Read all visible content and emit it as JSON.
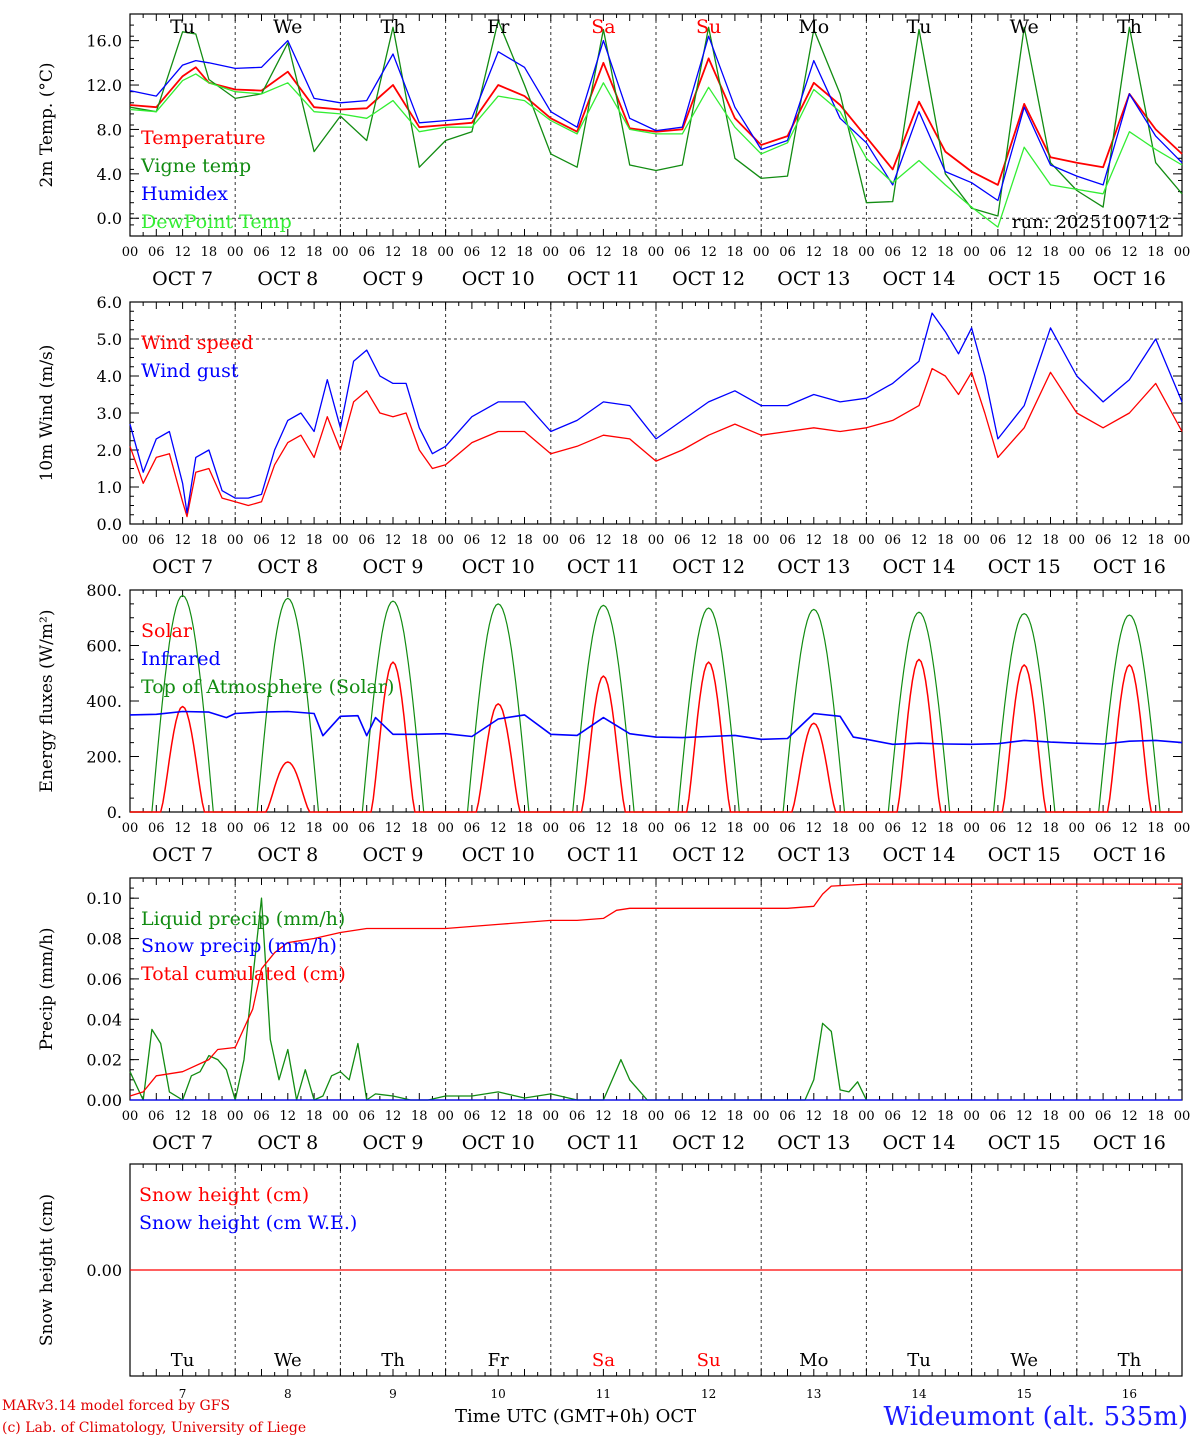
{
  "station": "Wideumont (alt. 535m)",
  "model_note": "MARv3.14 model forced by GFS",
  "copyright": "(c) Lab. of Climatology, University of Liege",
  "x_axis_title": "Time UTC (GMT+0h)",
  "month_label": "OCT",
  "run_label": "run: 2025100712",
  "days": [
    {
      "dow": "Tu",
      "date": "OCT  7",
      "num": "7",
      "weekend": false
    },
    {
      "dow": "We",
      "date": "OCT  8",
      "num": "8",
      "weekend": false
    },
    {
      "dow": "Th",
      "date": "OCT  9",
      "num": "9",
      "weekend": false
    },
    {
      "dow": "Fr",
      "date": "OCT 10",
      "num": "10",
      "weekend": false
    },
    {
      "dow": "Sa",
      "date": "OCT 11",
      "num": "11",
      "weekend": true
    },
    {
      "dow": "Su",
      "date": "OCT 12",
      "num": "12",
      "weekend": true
    },
    {
      "dow": "Mo",
      "date": "OCT 13",
      "num": "13",
      "weekend": false
    },
    {
      "dow": "Tu",
      "date": "OCT 14",
      "num": "14",
      "weekend": false
    },
    {
      "dow": "We",
      "date": "OCT 15",
      "num": "15",
      "weekend": false
    },
    {
      "dow": "Th",
      "date": "OCT 16",
      "num": "16",
      "weekend": false
    }
  ],
  "hour_labels": [
    "00",
    "06",
    "12",
    "18"
  ],
  "colors": {
    "red": "#ff0000",
    "darkgreen": "#128c12",
    "blue": "#0000ff",
    "lightgreen": "#33ee33",
    "weekend": "#ff0000",
    "station": "#1a1aff"
  },
  "chart_data": [
    {
      "type": "line",
      "id": "temp",
      "ylabel": "2m Temp. (°C)",
      "ylim": [
        -1.6,
        18.4
      ],
      "yticks": [
        0.0,
        4.0,
        8.0,
        12.0,
        16.0
      ],
      "ytick_labels": [
        "0.0",
        "4.0",
        "8.0",
        "12.0",
        "16.0"
      ],
      "x_unit": "hours since 2025-10-07 00 UTC",
      "series": [
        {
          "name": "Temperature",
          "color": "#ff0000",
          "x": [
            0,
            6,
            12,
            15,
            18,
            24,
            30,
            36,
            42,
            48,
            54,
            60,
            66,
            72,
            78,
            84,
            90,
            96,
            102,
            108,
            114,
            120,
            126,
            132,
            138,
            144,
            150,
            156,
            162,
            168,
            174,
            180,
            186,
            192,
            198,
            204,
            210,
            216,
            222,
            228,
            234,
            240
          ],
          "y": [
            10.2,
            10.0,
            12.8,
            13.6,
            12.2,
            11.6,
            11.5,
            13.2,
            10.0,
            9.8,
            9.9,
            12.0,
            8.2,
            8.4,
            8.6,
            12.0,
            11.0,
            9.0,
            7.8,
            14.0,
            8.1,
            7.8,
            8.0,
            14.4,
            9.0,
            6.6,
            7.4,
            12.2,
            10.2,
            7.3,
            4.4,
            10.5,
            6.0,
            4.2,
            3.0,
            10.3,
            5.5,
            5.0,
            4.6,
            11.2,
            8.0,
            5.8
          ]
        },
        {
          "name": "Vigne temp",
          "color": "#128c12",
          "x": [
            0,
            6,
            12,
            15,
            18,
            24,
            30,
            36,
            42,
            48,
            54,
            60,
            66,
            72,
            78,
            84,
            90,
            96,
            102,
            108,
            114,
            120,
            126,
            132,
            138,
            144,
            150,
            156,
            162,
            168,
            174,
            180,
            186,
            192,
            198,
            204,
            210,
            216,
            222,
            228,
            234,
            240
          ],
          "y": [
            10.0,
            9.6,
            16.8,
            16.6,
            12.5,
            10.8,
            11.2,
            15.8,
            6.0,
            9.2,
            7.0,
            17.2,
            4.6,
            7.0,
            7.8,
            17.8,
            12.0,
            5.8,
            4.6,
            17.0,
            4.8,
            4.3,
            4.8,
            17.2,
            5.4,
            3.6,
            3.8,
            17.0,
            11.2,
            1.4,
            1.5,
            17.0,
            4.0,
            0.9,
            0.2,
            17.2,
            5.0,
            2.5,
            1.0,
            17.2,
            5.0,
            2.2
          ]
        },
        {
          "name": "Humidex",
          "color": "#0000ff",
          "x": [
            0,
            6,
            12,
            15,
            18,
            24,
            30,
            36,
            42,
            48,
            54,
            60,
            66,
            72,
            78,
            84,
            90,
            96,
            102,
            108,
            114,
            120,
            126,
            132,
            138,
            144,
            150,
            156,
            162,
            168,
            174,
            180,
            186,
            192,
            198,
            204,
            210,
            216,
            222,
            228,
            234,
            240
          ],
          "y": [
            11.5,
            11.0,
            13.8,
            14.2,
            14.0,
            13.5,
            13.6,
            16.0,
            10.8,
            10.4,
            10.6,
            14.8,
            8.6,
            8.8,
            9.0,
            15.0,
            13.6,
            9.6,
            8.2,
            16.0,
            9.0,
            7.9,
            8.2,
            16.4,
            10.0,
            6.2,
            7.0,
            14.2,
            9.0,
            6.8,
            3.0,
            9.6,
            4.2,
            3.2,
            1.6,
            10.0,
            4.8,
            3.8,
            3.0,
            11.2,
            7.4,
            5.0
          ]
        },
        {
          "name": "DewPoint Temp",
          "color": "#33ee33",
          "x": [
            0,
            6,
            12,
            15,
            18,
            24,
            30,
            36,
            42,
            48,
            54,
            60,
            66,
            72,
            78,
            84,
            90,
            96,
            102,
            108,
            114,
            120,
            126,
            132,
            138,
            144,
            150,
            156,
            162,
            168,
            174,
            180,
            186,
            192,
            198,
            204,
            210,
            216,
            222,
            228,
            234,
            240
          ],
          "y": [
            9.8,
            9.6,
            12.4,
            13.0,
            12.2,
            11.4,
            11.2,
            12.2,
            9.6,
            9.4,
            9.0,
            10.6,
            7.8,
            8.2,
            8.2,
            11.0,
            10.6,
            8.8,
            7.6,
            12.2,
            8.0,
            7.6,
            7.6,
            11.8,
            8.2,
            5.8,
            6.8,
            11.6,
            9.6,
            5.4,
            3.2,
            5.2,
            3.0,
            1.0,
            -0.8,
            6.4,
            3.0,
            2.6,
            2.2,
            7.8,
            6.2,
            4.8
          ]
        }
      ]
    },
    {
      "type": "line",
      "id": "wind",
      "ylabel": "10m Wind (m/s)",
      "ylim": [
        0.0,
        6.0
      ],
      "yticks": [
        0.0,
        1.0,
        2.0,
        3.0,
        4.0,
        5.0,
        6.0
      ],
      "ytick_labels": [
        "0.0",
        "1.0",
        "2.0",
        "3.0",
        "4.0",
        "5.0",
        "6.0"
      ],
      "hline": 5.0,
      "series": [
        {
          "name": "Wind speed",
          "color": "#ff0000",
          "x": [
            0,
            3,
            6,
            9,
            12,
            13,
            15,
            18,
            21,
            24,
            27,
            30,
            33,
            36,
            39,
            42,
            45,
            48,
            51,
            54,
            57,
            60,
            63,
            66,
            69,
            72,
            78,
            84,
            90,
            96,
            102,
            108,
            114,
            120,
            126,
            132,
            138,
            144,
            150,
            156,
            162,
            168,
            174,
            180,
            183,
            186,
            189,
            192,
            195,
            198,
            204,
            210,
            216,
            222,
            228,
            234,
            240
          ],
          "y": [
            2.1,
            1.1,
            1.8,
            1.9,
            0.6,
            0.2,
            1.4,
            1.5,
            0.7,
            0.6,
            0.5,
            0.6,
            1.6,
            2.2,
            2.4,
            1.8,
            2.9,
            2.0,
            3.3,
            3.6,
            3.0,
            2.9,
            3.0,
            2.0,
            1.5,
            1.6,
            2.2,
            2.5,
            2.5,
            1.9,
            2.1,
            2.4,
            2.3,
            1.7,
            2.0,
            2.4,
            2.7,
            2.4,
            2.5,
            2.6,
            2.5,
            2.6,
            2.8,
            3.2,
            4.2,
            4.0,
            3.5,
            4.1,
            3.0,
            1.8,
            2.6,
            4.1,
            3.0,
            2.6,
            3.0,
            3.8,
            2.5
          ]
        },
        {
          "name": "Wind gust",
          "color": "#0000ff",
          "x": [
            0,
            3,
            6,
            9,
            12,
            13,
            15,
            18,
            21,
            24,
            27,
            30,
            33,
            36,
            39,
            42,
            45,
            48,
            51,
            54,
            57,
            60,
            63,
            66,
            69,
            72,
            78,
            84,
            90,
            96,
            102,
            108,
            114,
            120,
            126,
            132,
            138,
            144,
            150,
            156,
            162,
            168,
            174,
            180,
            183,
            186,
            189,
            192,
            195,
            198,
            204,
            210,
            216,
            222,
            228,
            234,
            240
          ],
          "y": [
            2.7,
            1.4,
            2.3,
            2.5,
            1.1,
            0.3,
            1.8,
            2.0,
            0.9,
            0.7,
            0.7,
            0.8,
            2.0,
            2.8,
            3.0,
            2.5,
            3.9,
            2.6,
            4.4,
            4.7,
            4.0,
            3.8,
            3.8,
            2.6,
            1.9,
            2.1,
            2.9,
            3.3,
            3.3,
            2.5,
            2.8,
            3.3,
            3.2,
            2.3,
            2.8,
            3.3,
            3.6,
            3.2,
            3.2,
            3.5,
            3.3,
            3.4,
            3.8,
            4.4,
            5.7,
            5.2,
            4.6,
            5.3,
            4.0,
            2.3,
            3.2,
            5.3,
            4.0,
            3.3,
            3.9,
            5.0,
            3.3
          ]
        }
      ]
    },
    {
      "type": "line",
      "id": "energy",
      "ylabel": "Energy fluxes (W/m²)",
      "ylim": [
        0,
        800
      ],
      "yticks": [
        0,
        200,
        400,
        600,
        800
      ],
      "ytick_labels": [
        "0.",
        "200.",
        "400.",
        "600.",
        "800."
      ],
      "daily_peaks": {
        "Solar": [
          380,
          180,
          540,
          390,
          490,
          540,
          320,
          550,
          530,
          530
        ],
        "Top of Atmosphere (Solar)": [
          780,
          770,
          760,
          750,
          745,
          735,
          730,
          720,
          715,
          710
        ]
      },
      "series": [
        {
          "name": "Solar",
          "color": "#ff0000"
        },
        {
          "name": "Infrared",
          "color": "#0000ff",
          "x": [
            0,
            6,
            12,
            18,
            22,
            24,
            30,
            36,
            42,
            44,
            48,
            52,
            54,
            56,
            60,
            66,
            72,
            78,
            84,
            90,
            96,
            102,
            108,
            114,
            120,
            126,
            132,
            138,
            144,
            150,
            156,
            162,
            165,
            168,
            174,
            180,
            186,
            192,
            198,
            204,
            210,
            216,
            222,
            228,
            234,
            240
          ],
          "y": [
            350,
            352,
            362,
            360,
            340,
            355,
            360,
            362,
            355,
            275,
            345,
            347,
            275,
            340,
            280,
            280,
            282,
            272,
            335,
            350,
            280,
            276,
            340,
            282,
            270,
            268,
            272,
            276,
            262,
            265,
            355,
            345,
            270,
            262,
            244,
            248,
            245,
            244,
            246,
            258,
            252,
            248,
            245,
            255,
            258,
            250
          ]
        },
        {
          "name": "Top of Atmosphere (Solar)",
          "color": "#128c12"
        }
      ]
    },
    {
      "type": "line",
      "id": "precip",
      "ylabel": "Precip (mm/h)",
      "ylim": [
        0.0,
        0.11
      ],
      "yticks": [
        0.0,
        0.02,
        0.04,
        0.06,
        0.08,
        0.1
      ],
      "ytick_labels": [
        "0.00",
        "0.02",
        "0.04",
        "0.06",
        "0.08",
        "0.10"
      ],
      "series": [
        {
          "name": "Liquid precip (mm/h)",
          "color": "#128c12",
          "x": [
            0,
            3,
            5,
            7,
            9,
            12,
            14,
            16,
            18,
            20,
            22,
            24,
            26,
            28,
            30,
            32,
            34,
            36,
            38,
            40,
            42,
            44,
            46,
            48,
            50,
            52,
            54,
            56,
            60,
            64,
            68,
            72,
            78,
            84,
            90,
            96,
            102,
            108,
            110,
            112,
            114,
            118,
            144,
            154,
            156,
            158,
            160,
            162,
            164,
            166,
            168
          ],
          "y": [
            0.014,
            0.0,
            0.035,
            0.028,
            0.004,
            0.0,
            0.012,
            0.014,
            0.022,
            0.02,
            0.015,
            0.0,
            0.02,
            0.06,
            0.1,
            0.03,
            0.01,
            0.025,
            0.0,
            0.015,
            0.0,
            0.002,
            0.012,
            0.014,
            0.01,
            0.028,
            0.0,
            0.003,
            0.002,
            0.0,
            0.0,
            0.002,
            0.002,
            0.004,
            0.001,
            0.003,
            0.0,
            0.0,
            0.01,
            0.02,
            0.01,
            0.0,
            0.0,
            0.0,
            0.01,
            0.038,
            0.034,
            0.005,
            0.004,
            0.009,
            0.0
          ]
        },
        {
          "name": "Snow precip (mm/h)",
          "color": "#0000ff",
          "x": [
            0,
            240
          ],
          "y": [
            0.0,
            0.0
          ]
        },
        {
          "name": "Total cumulated (cm)",
          "color": "#ff0000",
          "x": [
            0,
            3,
            6,
            12,
            18,
            20,
            24,
            28,
            30,
            33,
            36,
            42,
            48,
            54,
            60,
            72,
            84,
            96,
            102,
            108,
            111,
            114,
            120,
            132,
            144,
            150,
            156,
            158,
            160,
            168,
            240
          ],
          "y": [
            0.002,
            0.004,
            0.012,
            0.014,
            0.02,
            0.025,
            0.026,
            0.045,
            0.065,
            0.073,
            0.078,
            0.08,
            0.083,
            0.085,
            0.085,
            0.085,
            0.087,
            0.089,
            0.089,
            0.09,
            0.094,
            0.095,
            0.095,
            0.095,
            0.095,
            0.095,
            0.096,
            0.102,
            0.106,
            0.107,
            0.107
          ]
        }
      ]
    },
    {
      "type": "line",
      "id": "snow",
      "ylabel": "Snow height (cm)",
      "ylim": [
        -1,
        1
      ],
      "yticks": [
        0.0
      ],
      "ytick_labels": [
        "0.00"
      ],
      "series": [
        {
          "name": "Snow height (cm)",
          "color": "#ff0000",
          "x": [
            0,
            240
          ],
          "y": [
            0.0,
            0.0
          ]
        },
        {
          "name": "Snow height (cm W.E.)",
          "color": "#0000ff",
          "x": [
            0,
            240
          ],
          "y": [
            0.0,
            0.0
          ]
        }
      ]
    }
  ]
}
